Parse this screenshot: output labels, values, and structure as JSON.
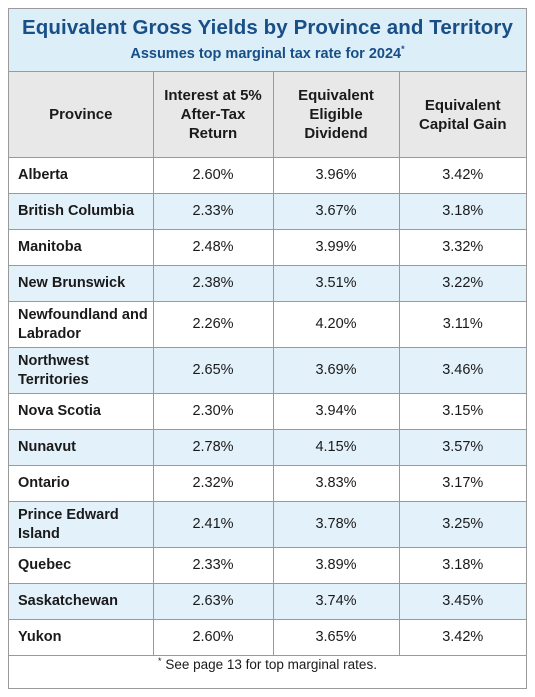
{
  "title": "Equivalent Gross Yields by Province and Territory",
  "subtitle": "Assumes top marginal tax rate for 2024",
  "subtitle_marker": "*",
  "columns": {
    "province": "Province",
    "interest": "Interest at 5% After-Tax Return",
    "dividend": "Equivalent Eligible Dividend",
    "capital_gain": "Equivalent Capital Gain"
  },
  "rows": [
    {
      "province": "Alberta",
      "interest": "2.60%",
      "dividend": "3.96%",
      "capital_gain": "3.42%"
    },
    {
      "province": "British Columbia",
      "interest": "2.33%",
      "dividend": "3.67%",
      "capital_gain": "3.18%"
    },
    {
      "province": "Manitoba",
      "interest": "2.48%",
      "dividend": "3.99%",
      "capital_gain": "3.32%"
    },
    {
      "province": "New Brunswick",
      "interest": "2.38%",
      "dividend": "3.51%",
      "capital_gain": "3.22%"
    },
    {
      "province": "Newfoundland and Labrador",
      "interest": "2.26%",
      "dividend": "4.20%",
      "capital_gain": "3.11%"
    },
    {
      "province": "Northwest Territories",
      "interest": "2.65%",
      "dividend": "3.69%",
      "capital_gain": "3.46%"
    },
    {
      "province": "Nova Scotia",
      "interest": "2.30%",
      "dividend": "3.94%",
      "capital_gain": "3.15%"
    },
    {
      "province": "Nunavut",
      "interest": "2.78%",
      "dividend": "4.15%",
      "capital_gain": "3.57%"
    },
    {
      "province": "Ontario",
      "interest": "2.32%",
      "dividend": "3.83%",
      "capital_gain": "3.17%"
    },
    {
      "province": "Prince Edward Island",
      "interest": "2.41%",
      "dividend": "3.78%",
      "capital_gain": "3.25%"
    },
    {
      "province": "Quebec",
      "interest": "2.33%",
      "dividend": "3.89%",
      "capital_gain": "3.18%"
    },
    {
      "province": "Saskatchewan",
      "interest": "2.63%",
      "dividend": "3.74%",
      "capital_gain": "3.45%"
    },
    {
      "province": "Yukon",
      "interest": "2.60%",
      "dividend": "3.65%",
      "capital_gain": "3.42%"
    }
  ],
  "footnote_marker": "*",
  "footnote": "See page 13 for top marginal rates.",
  "colors": {
    "title": "#174f86",
    "title_band": "#dceef8",
    "header_band": "#e8e8e8",
    "row_alt": "#e3f1fa",
    "border": "#9a9a9a"
  }
}
